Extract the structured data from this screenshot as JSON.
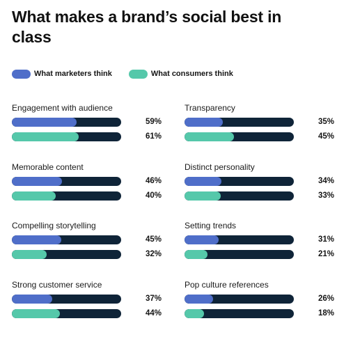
{
  "title": "What makes a brand’s social best in class",
  "colors": {
    "marketers": "#4f6ec9",
    "consumers": "#55c8aa",
    "track": "#0f2438"
  },
  "chart_data": {
    "type": "bar",
    "orientation": "horizontal",
    "title": "What makes a brand’s social best in class",
    "legend_position": "top-left",
    "ylim": [
      0,
      100
    ],
    "grid": false,
    "series": [
      {
        "name": "What marketers think",
        "color": "#4f6ec9"
      },
      {
        "name": "What consumers think",
        "color": "#55c8aa"
      }
    ],
    "categories": [
      {
        "label": "Engagement with audience",
        "values": [
          59,
          61
        ],
        "labels": [
          "59%",
          "61%"
        ]
      },
      {
        "label": "Transparency",
        "values": [
          35,
          45
        ],
        "labels": [
          "35%",
          "45%"
        ]
      },
      {
        "label": "Memorable content",
        "values": [
          46,
          40
        ],
        "labels": [
          "46%",
          "40%"
        ]
      },
      {
        "label": "Distinct personality",
        "values": [
          34,
          33
        ],
        "labels": [
          "34%",
          "33%"
        ]
      },
      {
        "label": "Compelling storytelling",
        "values": [
          45,
          32
        ],
        "labels": [
          "45%",
          "32%"
        ]
      },
      {
        "label": "Setting trends",
        "values": [
          31,
          21
        ],
        "labels": [
          "31%",
          "21%"
        ]
      },
      {
        "label": "Strong customer service",
        "values": [
          37,
          44
        ],
        "labels": [
          "37%",
          "44%"
        ]
      },
      {
        "label": "Pop culture references",
        "values": [
          26,
          18
        ],
        "labels": [
          "26%",
          "18%"
        ]
      }
    ]
  }
}
